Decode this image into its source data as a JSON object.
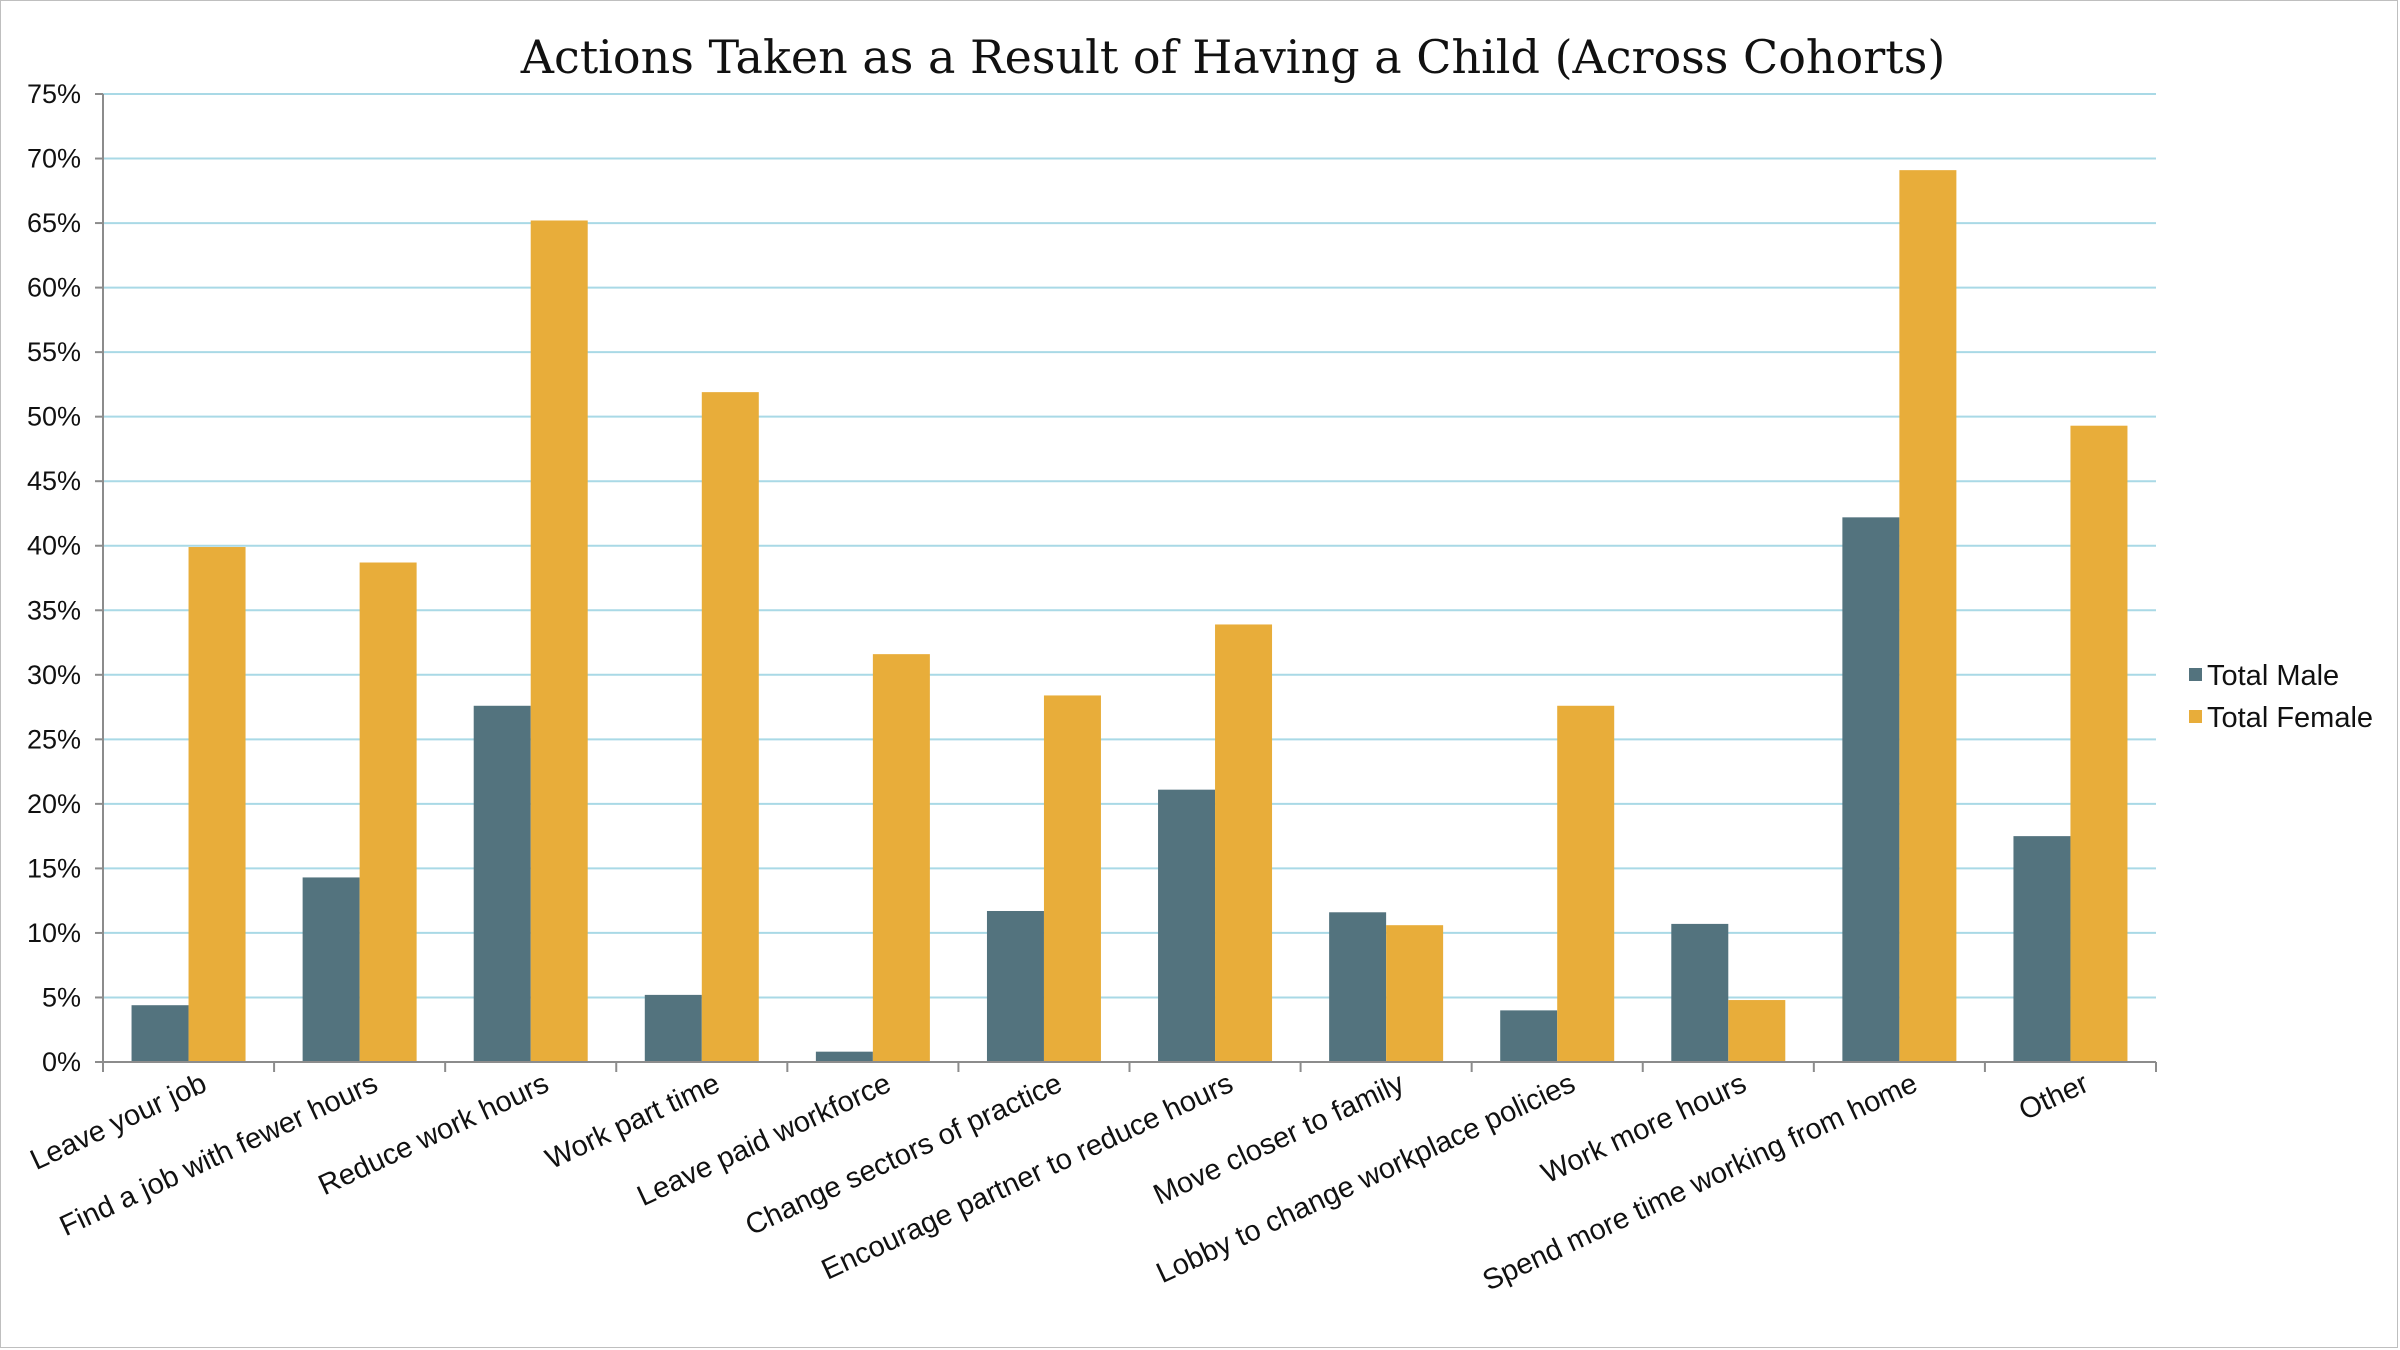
{
  "chart_data": {
    "type": "bar",
    "title": "Actions Taken as a Result of Having a Child (Across Cohorts)",
    "xlabel": "",
    "ylabel": "",
    "ylim": [
      0,
      75
    ],
    "ytick_step": 5,
    "ytick_labels": [
      "0%",
      "5%",
      "10%",
      "15%",
      "20%",
      "25%",
      "30%",
      "35%",
      "40%",
      "45%",
      "50%",
      "55%",
      "60%",
      "65%",
      "70%",
      "75%"
    ],
    "grid": true,
    "legend_position": "right",
    "categories": [
      "Leave your job",
      "Find a job with fewer hours",
      "Reduce work hours",
      "Work part time",
      "Leave paid workforce",
      "Change sectors of practice",
      "Encourage partner to reduce hours",
      "Move closer to family",
      "Lobby to change workplace policies",
      "Work more hours",
      "Spend more time working from home",
      "Other"
    ],
    "series": [
      {
        "name": "Total Male",
        "color": "#53737e",
        "values": [
          4.4,
          14.3,
          27.6,
          5.2,
          0.8,
          11.7,
          21.1,
          11.6,
          4.0,
          10.7,
          42.2,
          17.5
        ]
      },
      {
        "name": "Total Female",
        "color": "#e8ad3a",
        "values": [
          39.9,
          38.7,
          65.2,
          51.9,
          31.6,
          28.4,
          33.9,
          10.6,
          27.6,
          4.8,
          69.1,
          49.3
        ]
      }
    ],
    "gridline_color": "#a9d9e6",
    "axis_color": "#8c8c8c"
  }
}
